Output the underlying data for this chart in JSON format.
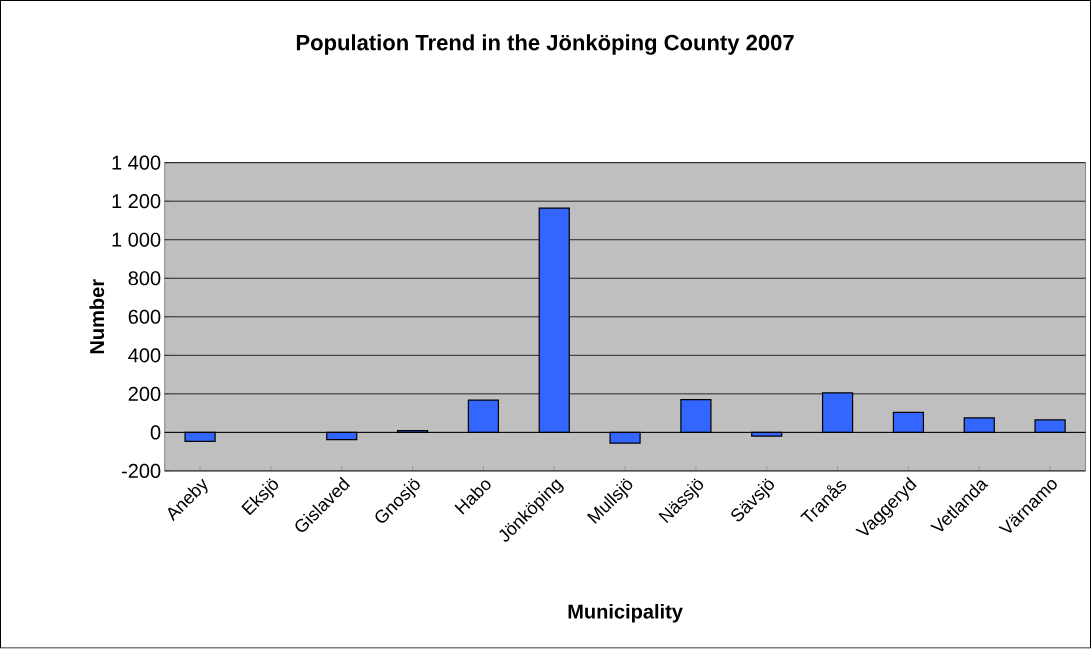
{
  "chart_data": {
    "type": "bar",
    "title": "Population Trend  in the Jönköping County 2007",
    "xlabel": "Municipality",
    "ylabel": "Number",
    "categories": [
      "Aneby",
      "Eksjö",
      "Gislaved",
      "Gnosjö",
      "Habo",
      "Jönköping",
      "Mullsjö",
      "Nässjö",
      "Sävsjö",
      "Tranås",
      "Vaggeryd",
      "Vetlanda",
      "Värnamo"
    ],
    "values": [
      -47,
      null,
      -37,
      9,
      168,
      1164,
      -56,
      170,
      -19,
      205,
      104,
      75,
      65
    ],
    "color": "#3366ff",
    "ylim": [
      -200,
      1400
    ],
    "yticks": [
      {
        "value": -200,
        "label": "-200"
      },
      0,
      200,
      400,
      600,
      800,
      {
        "value": 1000,
        "label": "1 000"
      },
      {
        "value": 1200,
        "label": "1 200"
      },
      {
        "value": 1400,
        "label": "1 400"
      }
    ],
    "grid": "y"
  }
}
